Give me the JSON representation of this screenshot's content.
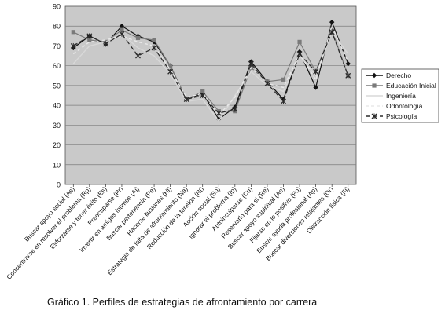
{
  "chart_data": {
    "type": "line",
    "title": "",
    "caption": "Gráfico 1. Perfiles de estrategias de afrontamiento por carrera",
    "xlabel": "",
    "ylabel": "",
    "ylim": [
      0,
      90
    ],
    "yticks": [
      0,
      10,
      20,
      30,
      40,
      50,
      60,
      70,
      80,
      90
    ],
    "grid": true,
    "legend_position": "right",
    "categories": [
      "Buscar apoyo social (As)",
      "Concentrarse en resolver el problema (Rp)",
      "Esforzarse y tener éxito (Es)",
      "Preocuparse (Pr)",
      "Invertir en amigos íntimos (Ai)",
      "Buscar pertenencia (Pe)",
      "Hacerse ilusiones (Hi)",
      "Estrategia de falta de afrontamiento (Na)",
      "Reducción de la tensión (Rt)",
      "Acción social (So)",
      "Ignorar el problema (Ip)",
      "Autoinculparse (Cu)",
      "Reservarlo para sí (Re)",
      "Buscar apoyo espiritual (Ae)",
      "Fijarse en lo positivo (Po)",
      "Buscar ayuda profesional (Ap)",
      "Buscar diversiones relajantes (Dr)",
      "Distracción física (Fi)"
    ],
    "series": [
      {
        "name": "Derecho",
        "color": "#111111",
        "marker": "diamond",
        "dash": "",
        "values": [
          69,
          75,
          71,
          80,
          75,
          72,
          60,
          43,
          46,
          33,
          39,
          62,
          52,
          43,
          67,
          49,
          82,
          61
        ]
      },
      {
        "name": "Educación Inicial",
        "color": "#7a7a7a",
        "marker": "square",
        "dash": "",
        "values": [
          77,
          73,
          72,
          78,
          74,
          73,
          60,
          43,
          47,
          37,
          37,
          59,
          52,
          53,
          72,
          57,
          78,
          55
        ]
      },
      {
        "name": "Ingeniería",
        "color": "#d8d8d8",
        "marker": "none",
        "dash": "",
        "values": [
          61,
          70,
          72,
          76,
          69,
          65,
          56,
          42,
          43,
          32,
          45,
          57,
          50,
          47,
          65,
          55,
          77,
          66
        ]
      },
      {
        "name": "Odontología",
        "color": "#e8e8e8",
        "marker": "none",
        "dash": "4,3",
        "values": [
          66,
          72,
          73,
          75,
          72,
          70,
          58,
          44,
          46,
          35,
          44,
          59,
          51,
          49,
          66,
          53,
          80,
          62
        ]
      },
      {
        "name": "Psicología",
        "color": "#2a2a2a",
        "marker": "x",
        "dash": "6,3",
        "values": [
          70,
          75,
          71,
          76,
          65,
          69,
          57,
          43,
          45,
          36,
          38,
          61,
          51,
          42,
          66,
          57,
          77,
          55
        ]
      }
    ]
  }
}
